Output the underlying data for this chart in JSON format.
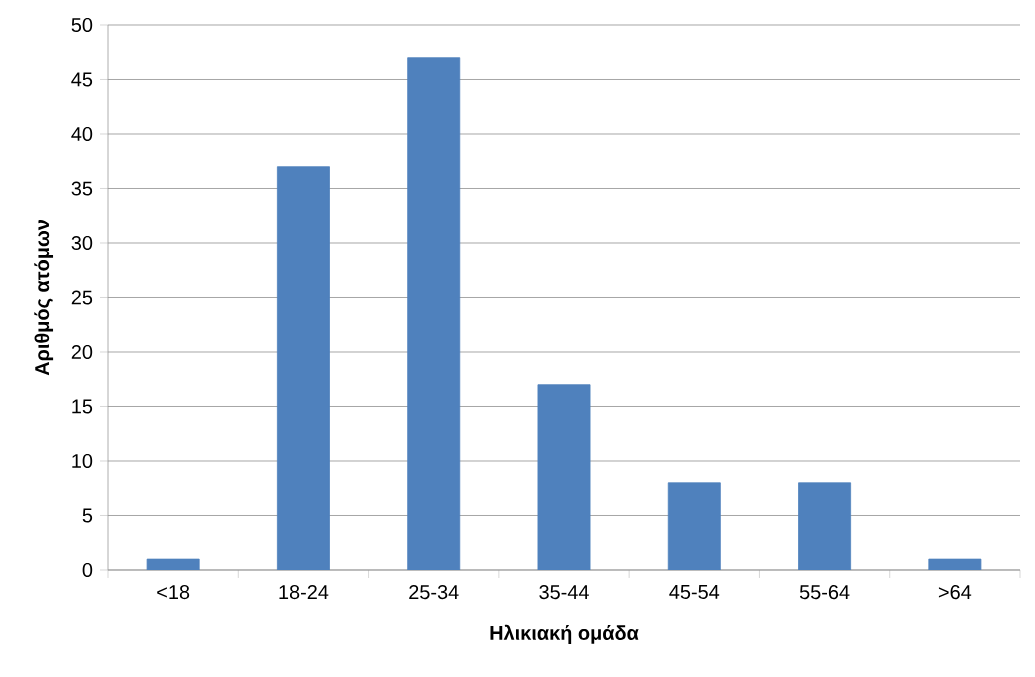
{
  "chart_data": {
    "type": "bar",
    "xlabel": "Ηλικιακή ομάδα",
    "ylabel": "Αριθμός ατόμων",
    "categories": [
      "<18",
      "18-24",
      "25-34",
      "35-44",
      "45-54",
      "55-64",
      ">64"
    ],
    "values": [
      1,
      37,
      47,
      17,
      8,
      8,
      1
    ],
    "color": "#4f81bd",
    "ylim": [
      0,
      50
    ],
    "yticks": [
      0,
      5,
      10,
      15,
      20,
      25,
      30,
      35,
      40,
      45,
      50
    ],
    "grid": "y"
  }
}
